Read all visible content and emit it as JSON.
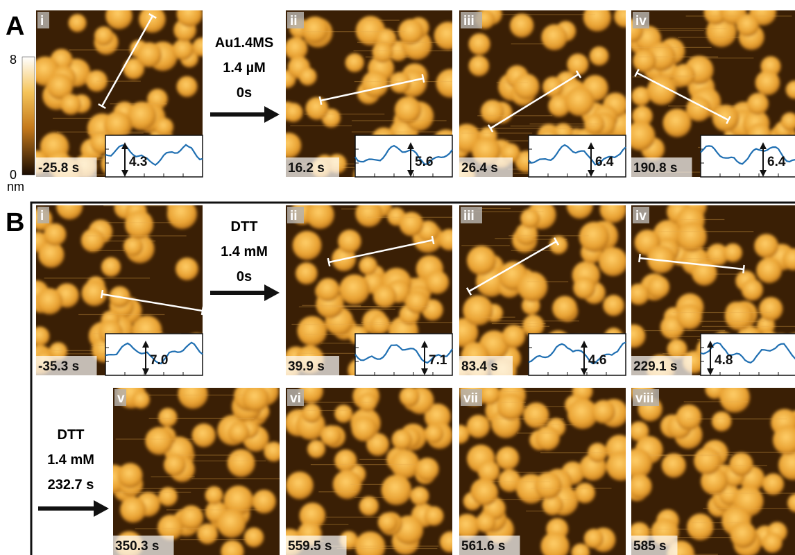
{
  "colorbar": {
    "max": "8",
    "min": "0",
    "unit": "nm"
  },
  "panel_a": {
    "label": "A",
    "treatment": [
      "Au1.4MS",
      "1.4 µM",
      "0s"
    ],
    "frames": [
      {
        "index": "i",
        "time": "-25.8 s",
        "height": "4.3"
      },
      {
        "index": "ii",
        "time": "16.2 s",
        "height": "5.6"
      },
      {
        "index": "iii",
        "time": "26.4 s",
        "height": "6.4"
      },
      {
        "index": "iv",
        "time": "190.8 s",
        "height": "6.4"
      }
    ]
  },
  "panel_b": {
    "label": "B",
    "treatments": [
      [
        "DTT",
        "1.4 mM",
        "0s"
      ],
      [
        "DTT",
        "1.4 mM",
        "232.7 s"
      ]
    ],
    "frames": [
      {
        "index": "i",
        "time": "-35.3 s",
        "height": "7.0"
      },
      {
        "index": "ii",
        "time": "39.9 s",
        "height": "7.1"
      },
      {
        "index": "iii",
        "time": "83.4 s",
        "height": "4.6"
      },
      {
        "index": "iv",
        "time": "229.1 s",
        "height": "4.8"
      },
      {
        "index": "v",
        "time": "350.3 s"
      },
      {
        "index": "vi",
        "time": "559.5 s"
      },
      {
        "index": "vii",
        "time": "561.6 s"
      },
      {
        "index": "viii",
        "time": "585 s"
      }
    ]
  }
}
